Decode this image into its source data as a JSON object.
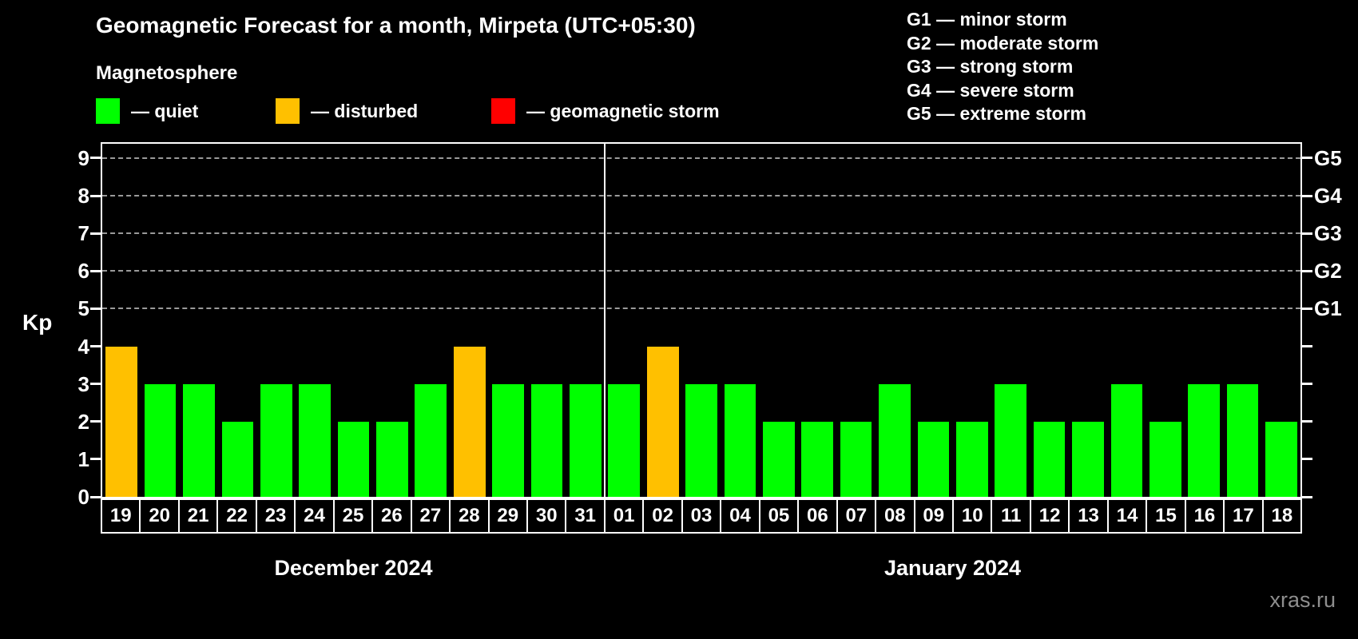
{
  "header": {
    "title": "Geomagnetic Forecast for a month, Mirpeta (UTC+05:30)",
    "subtitle": "Magnetosphere"
  },
  "legend": {
    "items": [
      {
        "name": "quiet",
        "label": "— quiet",
        "color": "#00ff00",
        "x": 120
      },
      {
        "name": "disturbed",
        "label": "— disturbed",
        "color": "#ffc000",
        "x": 345
      },
      {
        "name": "storm",
        "label": "— geomagnetic storm",
        "color": "#ff0000",
        "x": 615
      }
    ]
  },
  "g_scale_legend": [
    "G1 — minor storm",
    "G2 — moderate storm",
    "G3 — strong storm",
    "G4 — severe storm",
    "G5 — extreme storm"
  ],
  "axes": {
    "y_label": "Kp",
    "y_ticks": [
      0,
      1,
      2,
      3,
      4,
      5,
      6,
      7,
      8,
      9
    ],
    "y_max": 9.38,
    "grid_kp": [
      5,
      6,
      7,
      8,
      9
    ],
    "right_labels": [
      {
        "text": "G1",
        "kp": 5
      },
      {
        "text": "G2",
        "kp": 6
      },
      {
        "text": "G3",
        "kp": 7
      },
      {
        "text": "G4",
        "kp": 8
      },
      {
        "text": "G5",
        "kp": 9
      }
    ]
  },
  "chart_data": {
    "type": "bar",
    "title": "Geomagnetic Forecast for a month, Mirpeta (UTC+05:30)",
    "ylabel": "Kp",
    "ylim": [
      0,
      9.38
    ],
    "grid": "dashed horizontal lines at Kp 5,6,7,8,9",
    "legend_position": "top-left",
    "status_colors": {
      "quiet": "#00ff00",
      "disturbed": "#ffc000",
      "storm": "#ff0000"
    },
    "months": [
      {
        "label": "December 2024",
        "days": [
          "19",
          "20",
          "21",
          "22",
          "23",
          "24",
          "25",
          "26",
          "27",
          "28",
          "29",
          "30",
          "31"
        ],
        "kp": [
          4,
          3,
          3,
          2,
          3,
          3,
          2,
          2,
          3,
          4,
          3,
          3,
          3
        ],
        "status": [
          "disturbed",
          "quiet",
          "quiet",
          "quiet",
          "quiet",
          "quiet",
          "quiet",
          "quiet",
          "quiet",
          "disturbed",
          "quiet",
          "quiet",
          "quiet"
        ]
      },
      {
        "label": "January 2024",
        "days": [
          "01",
          "02",
          "03",
          "04",
          "05",
          "06",
          "07",
          "08",
          "09",
          "10",
          "11",
          "12",
          "13",
          "14",
          "15",
          "16",
          "17",
          "18"
        ],
        "kp": [
          3,
          4,
          3,
          3,
          2,
          2,
          2,
          3,
          2,
          2,
          3,
          2,
          2,
          3,
          2,
          3,
          3,
          2
        ],
        "status": [
          "quiet",
          "disturbed",
          "quiet",
          "quiet",
          "quiet",
          "quiet",
          "quiet",
          "quiet",
          "quiet",
          "quiet",
          "quiet",
          "quiet",
          "quiet",
          "quiet",
          "quiet",
          "quiet",
          "quiet",
          "quiet"
        ]
      }
    ]
  },
  "watermark": "xras.ru"
}
